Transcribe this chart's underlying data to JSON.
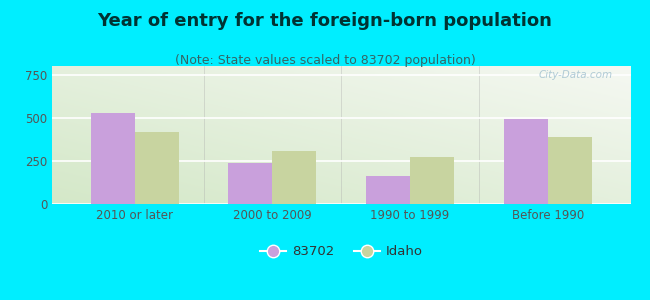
{
  "title": "Year of entry for the foreign-born population",
  "subtitle": "(Note: State values scaled to 83702 population)",
  "categories": [
    "2010 or later",
    "2000 to 2009",
    "1990 to 1999",
    "Before 1990"
  ],
  "series_83702": [
    530,
    240,
    160,
    495
  ],
  "series_idaho": [
    415,
    305,
    270,
    390
  ],
  "color_83702": "#c9a0dc",
  "color_idaho": "#c8d4a0",
  "background_outer": "#00eeff",
  "background_inner_left": "#cce8cc",
  "background_inner_right": "#f5f8f0",
  "ylim": [
    0,
    800
  ],
  "yticks": [
    0,
    250,
    500,
    750
  ],
  "legend_label_1": "83702",
  "legend_label_2": "Idaho",
  "bar_width": 0.32,
  "watermark": "City-Data.com",
  "title_fontsize": 13,
  "subtitle_fontsize": 9,
  "title_color": "#003333",
  "subtitle_color": "#336666",
  "tick_color": "#555555"
}
